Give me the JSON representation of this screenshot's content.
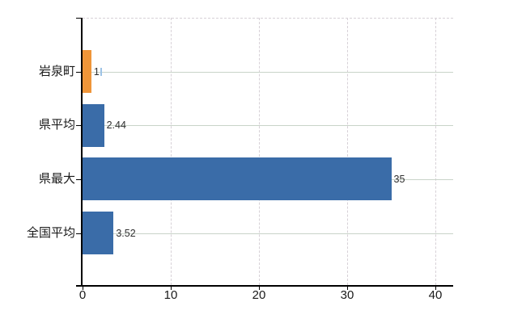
{
  "chart_data": {
    "type": "bar",
    "orientation": "horizontal",
    "title": "",
    "categories": [
      "岩泉町",
      "県平均",
      "県最大",
      "全国平均"
    ],
    "values": [
      1,
      2.44,
      35,
      3.52
    ],
    "value_labels": [
      "1",
      "2.44",
      "35",
      "3.52"
    ],
    "bar_colors": [
      "#EF9539",
      "#3A6CA8",
      "#3A6CA8",
      "#3A6CA8"
    ],
    "x_ticks": [
      0,
      10,
      20,
      30,
      40
    ],
    "x_tick_labels": [
      "0",
      "10",
      "20",
      "30",
      "40"
    ],
    "xlim": [
      0,
      42
    ],
    "legend": "none",
    "grid": {
      "vertical_dashed_at_ticks": true,
      "horizontal_solid_at_categories": true,
      "top_border_dashed": true
    },
    "edit_cursor_after_label_index": 0,
    "colors": {
      "background": "#FFFFFF",
      "axis": "#000000",
      "h_gridline": "#C9D3C9",
      "v_gridline": "#D7D1D7",
      "category_text": "#1A1A1A",
      "tick_text": "#1A1A1A",
      "data_label_text": "#303030",
      "edit_cursor": "#9DC3E6"
    }
  }
}
